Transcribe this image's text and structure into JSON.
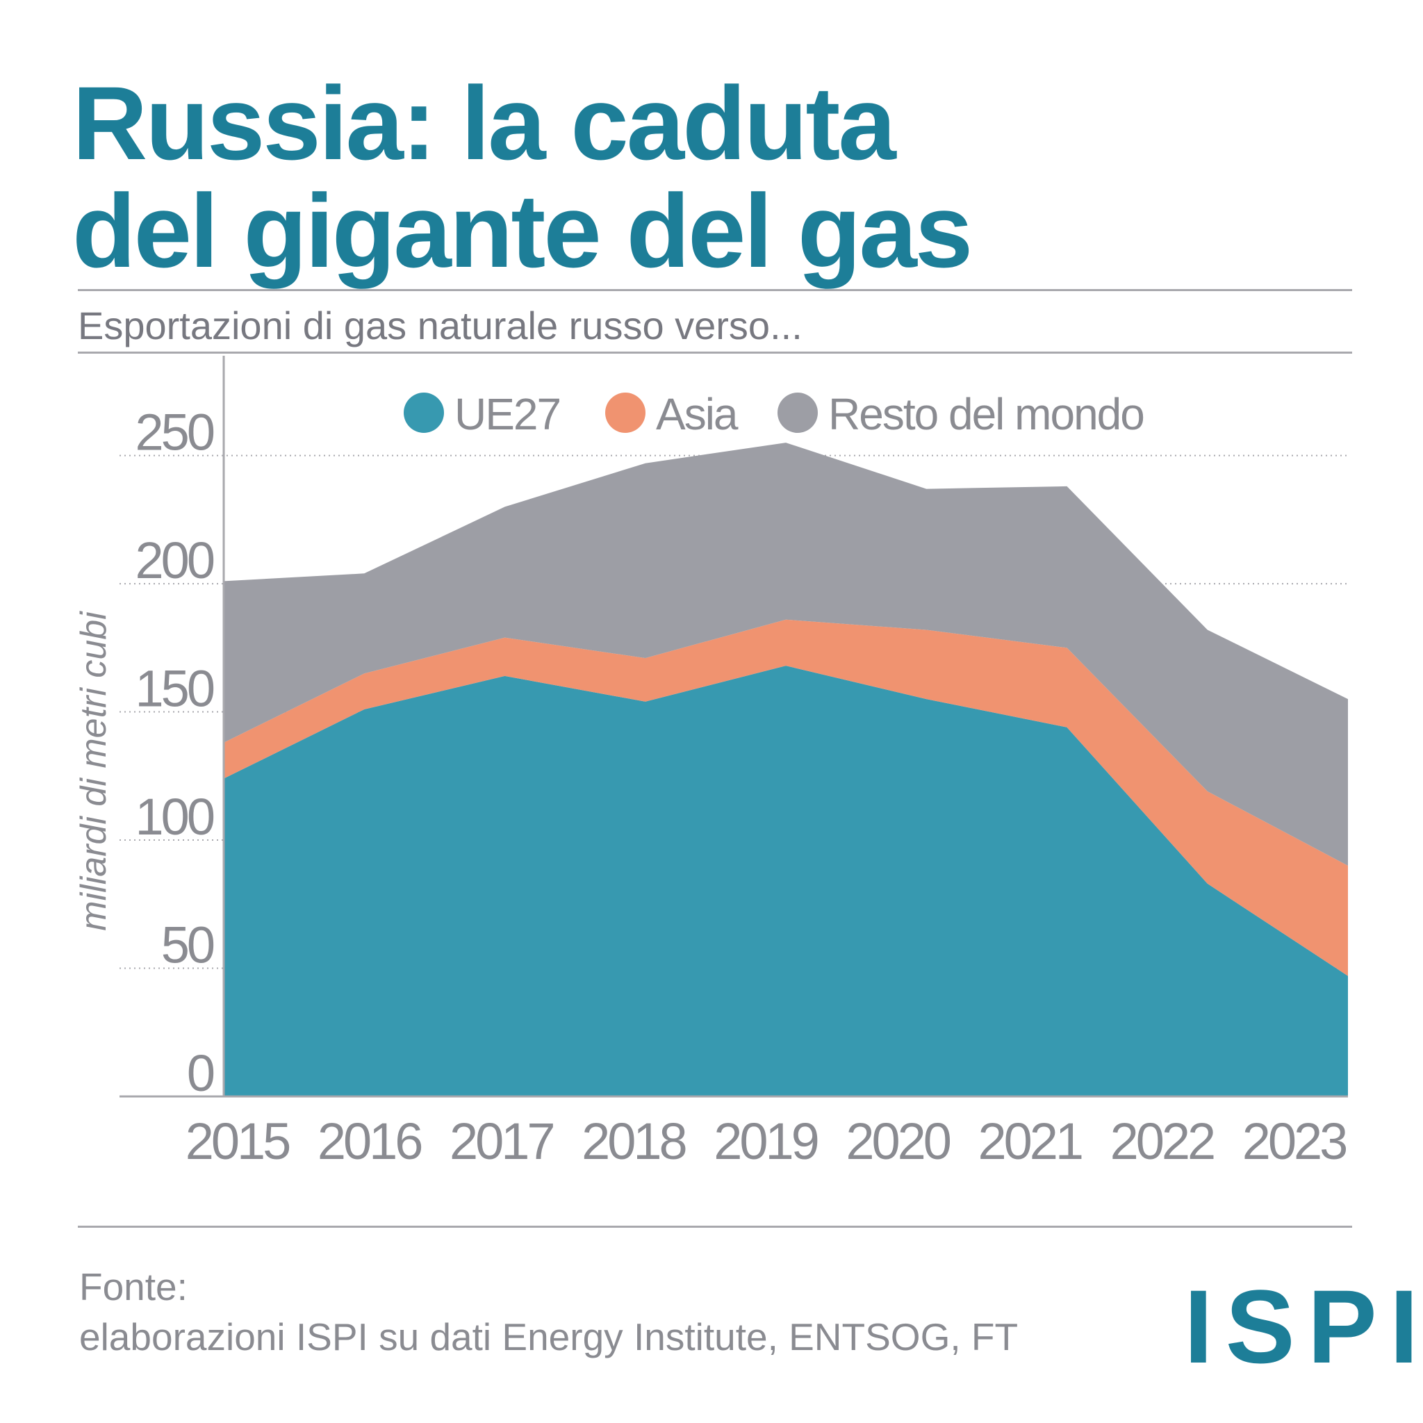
{
  "title_line1": "Russia: la caduta",
  "title_line2": "del gigante del gas",
  "subtitle": "Esportazioni di gas naturale russo verso...",
  "source_label": "Fonte:",
  "source_text": "elaborazioni ISPI su dati Energy Institute, ENTSOG, FT",
  "logo_text": "ISPI",
  "colors": {
    "title": "#1d7e98",
    "ue27": "#3799b0",
    "asia": "#f09370",
    "rest": "#9d9ea5",
    "text_gray": "#8a8b91"
  },
  "chart_data": {
    "type": "area",
    "stacked": true,
    "ylabel": "miliardi di metri cubi",
    "xlabel": "",
    "categories": [
      "2015",
      "2016",
      "2017",
      "2018",
      "2019",
      "2020",
      "2021",
      "2022",
      "2023"
    ],
    "yticks": [
      0,
      50,
      100,
      150,
      200,
      250
    ],
    "ylim": [
      0,
      290
    ],
    "grid": true,
    "legend_position": "top",
    "series": [
      {
        "name": "UE27",
        "color": "#3799b0",
        "values": [
          124,
          151,
          164,
          154,
          168,
          155,
          144,
          83,
          47
        ]
      },
      {
        "name": "Asia",
        "color": "#f09370",
        "values": [
          14,
          14,
          15,
          17,
          18,
          27,
          31,
          36,
          43
        ]
      },
      {
        "name": "Resto del mondo",
        "color": "#9d9ea5",
        "values": [
          63,
          39,
          51,
          76,
          69,
          55,
          63,
          63,
          65
        ]
      }
    ]
  }
}
